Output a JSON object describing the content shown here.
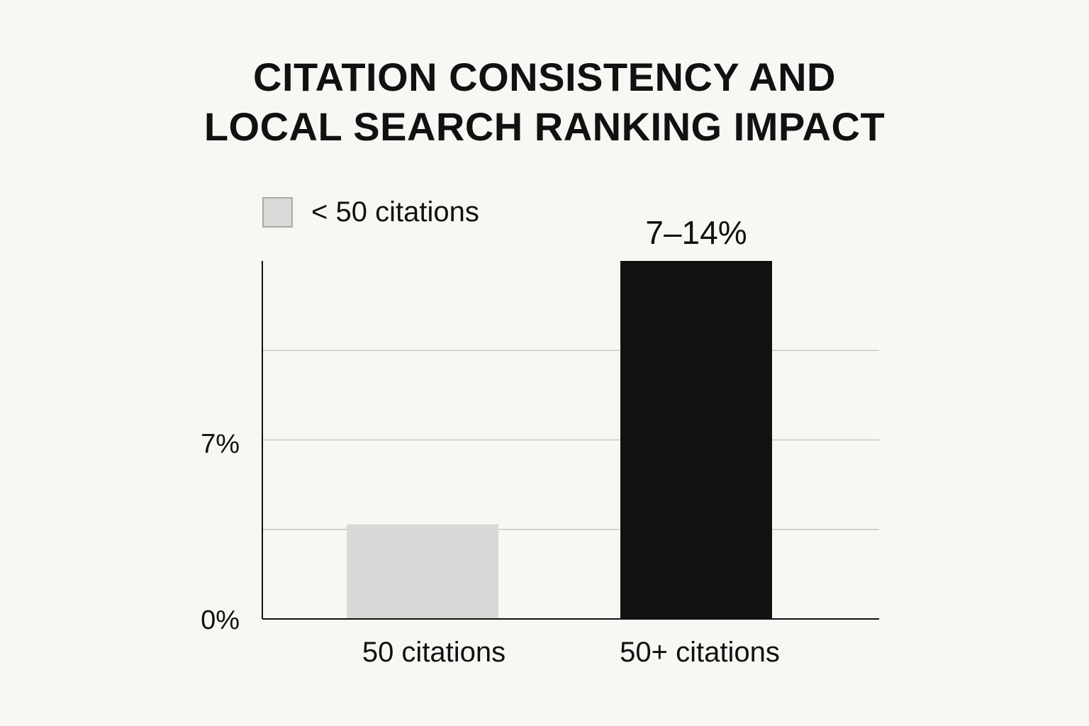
{
  "chart_data": {
    "type": "bar",
    "title": "CITATION CONSISTENCY AND LOCAL SEARCH RANKING IMPACT",
    "title_lines": [
      "CITATION CONSISTENCY AND",
      "LOCAL SEARCH RANKING IMPACT"
    ],
    "categories": [
      "50 citations",
      "50+ citations"
    ],
    "values": [
      3.7,
      14
    ],
    "data_labels": [
      "",
      "7–14%"
    ],
    "bar_colors": [
      "#d8d8d6",
      "#111111"
    ],
    "ylim": [
      0,
      14
    ],
    "y_ticks": [
      {
        "value": 0,
        "label": "0%"
      },
      {
        "value": 7,
        "label": "7%"
      }
    ],
    "gridlines": [
      3.5,
      7,
      10.5
    ],
    "grid": true,
    "legend": {
      "position": "top-left",
      "entries": [
        {
          "label": "< 50 citations",
          "color": "#d8d8d6"
        }
      ]
    },
    "xlabel": "",
    "ylabel": ""
  }
}
